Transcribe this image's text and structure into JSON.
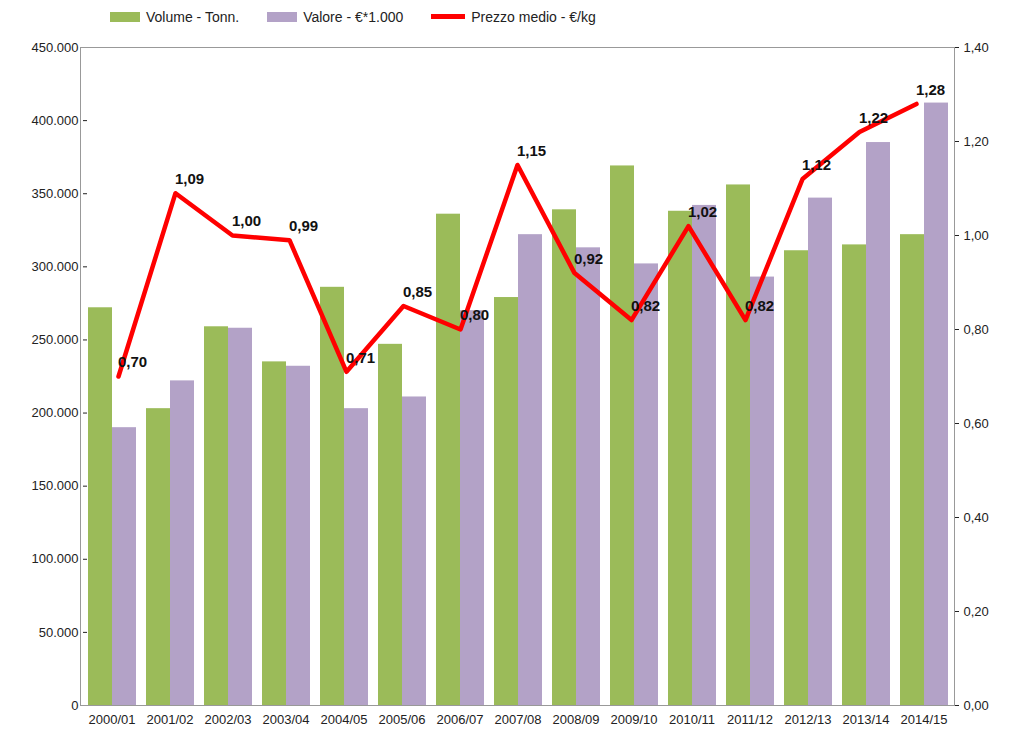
{
  "chart_data": {
    "type": "bar",
    "categories": [
      "2000/01",
      "2001/02",
      "2002/03",
      "2003/04",
      "2004/05",
      "2005/06",
      "2006/07",
      "2007/08",
      "2008/09",
      "2009/10",
      "2010/11",
      "2011/12",
      "2012/13",
      "2013/14",
      "2014/15"
    ],
    "series": [
      {
        "name": "Volume - Tonn.",
        "color": "#9bbb59",
        "type": "bar",
        "values": [
          272000,
          203000,
          259000,
          235000,
          286000,
          247000,
          336000,
          279000,
          339000,
          369000,
          338000,
          356000,
          311000,
          315000,
          322000
        ]
      },
      {
        "name": "Valore - €*1.000",
        "color": "#b3a2c7",
        "type": "bar",
        "values": [
          190000,
          222000,
          258000,
          232000,
          203000,
          211000,
          270000,
          322000,
          313000,
          302000,
          342000,
          293000,
          347000,
          385000,
          412000
        ]
      },
      {
        "name": "Prezzo medio - €/kg",
        "color": "#ff0000",
        "type": "line",
        "axis": "y2",
        "data_labels": true,
        "values": [
          0.7,
          1.09,
          1.0,
          0.99,
          0.71,
          0.85,
          0.8,
          1.15,
          0.92,
          0.82,
          1.02,
          0.82,
          1.12,
          1.22,
          1.28
        ],
        "value_labels": [
          "0,70",
          "1,09",
          "1,00",
          "0,99",
          "0,71",
          "0,85",
          "0,80",
          "1,15",
          "0,92",
          "0,82",
          "1,02",
          "0,82",
          "1,12",
          "1,22",
          "1,28"
        ]
      }
    ],
    "ylim": [
      0,
      450000
    ],
    "yticks": [
      0,
      {
        "value": 50000,
        "label": "50.000"
      },
      {
        "value": 100000,
        "label": "100.000"
      },
      {
        "value": 150000,
        "label": "150.000"
      },
      {
        "value": 200000,
        "label": "200.000"
      },
      {
        "value": 250000,
        "label": "250.000"
      },
      {
        "value": 300000,
        "label": "300.000"
      },
      {
        "value": 350000,
        "label": "350.000"
      },
      {
        "value": 400000,
        "label": "400.000"
      },
      {
        "value": 450000,
        "label": "450.000"
      }
    ],
    "y2lim": [
      0,
      1.4
    ],
    "y2ticks": [
      {
        "value": 0,
        "label": "0,00"
      },
      {
        "value": 0.2,
        "label": "0,20"
      },
      {
        "value": 0.4,
        "label": "0,40"
      },
      {
        "value": 0.6,
        "label": "0,60"
      },
      {
        "value": 0.8,
        "label": "0,80"
      },
      {
        "value": 1.0,
        "label": "1,00"
      },
      {
        "value": 1.2,
        "label": "1,20"
      },
      {
        "value": 1.4,
        "label": "1,40"
      }
    ],
    "legend": "top",
    "grid": false
  }
}
